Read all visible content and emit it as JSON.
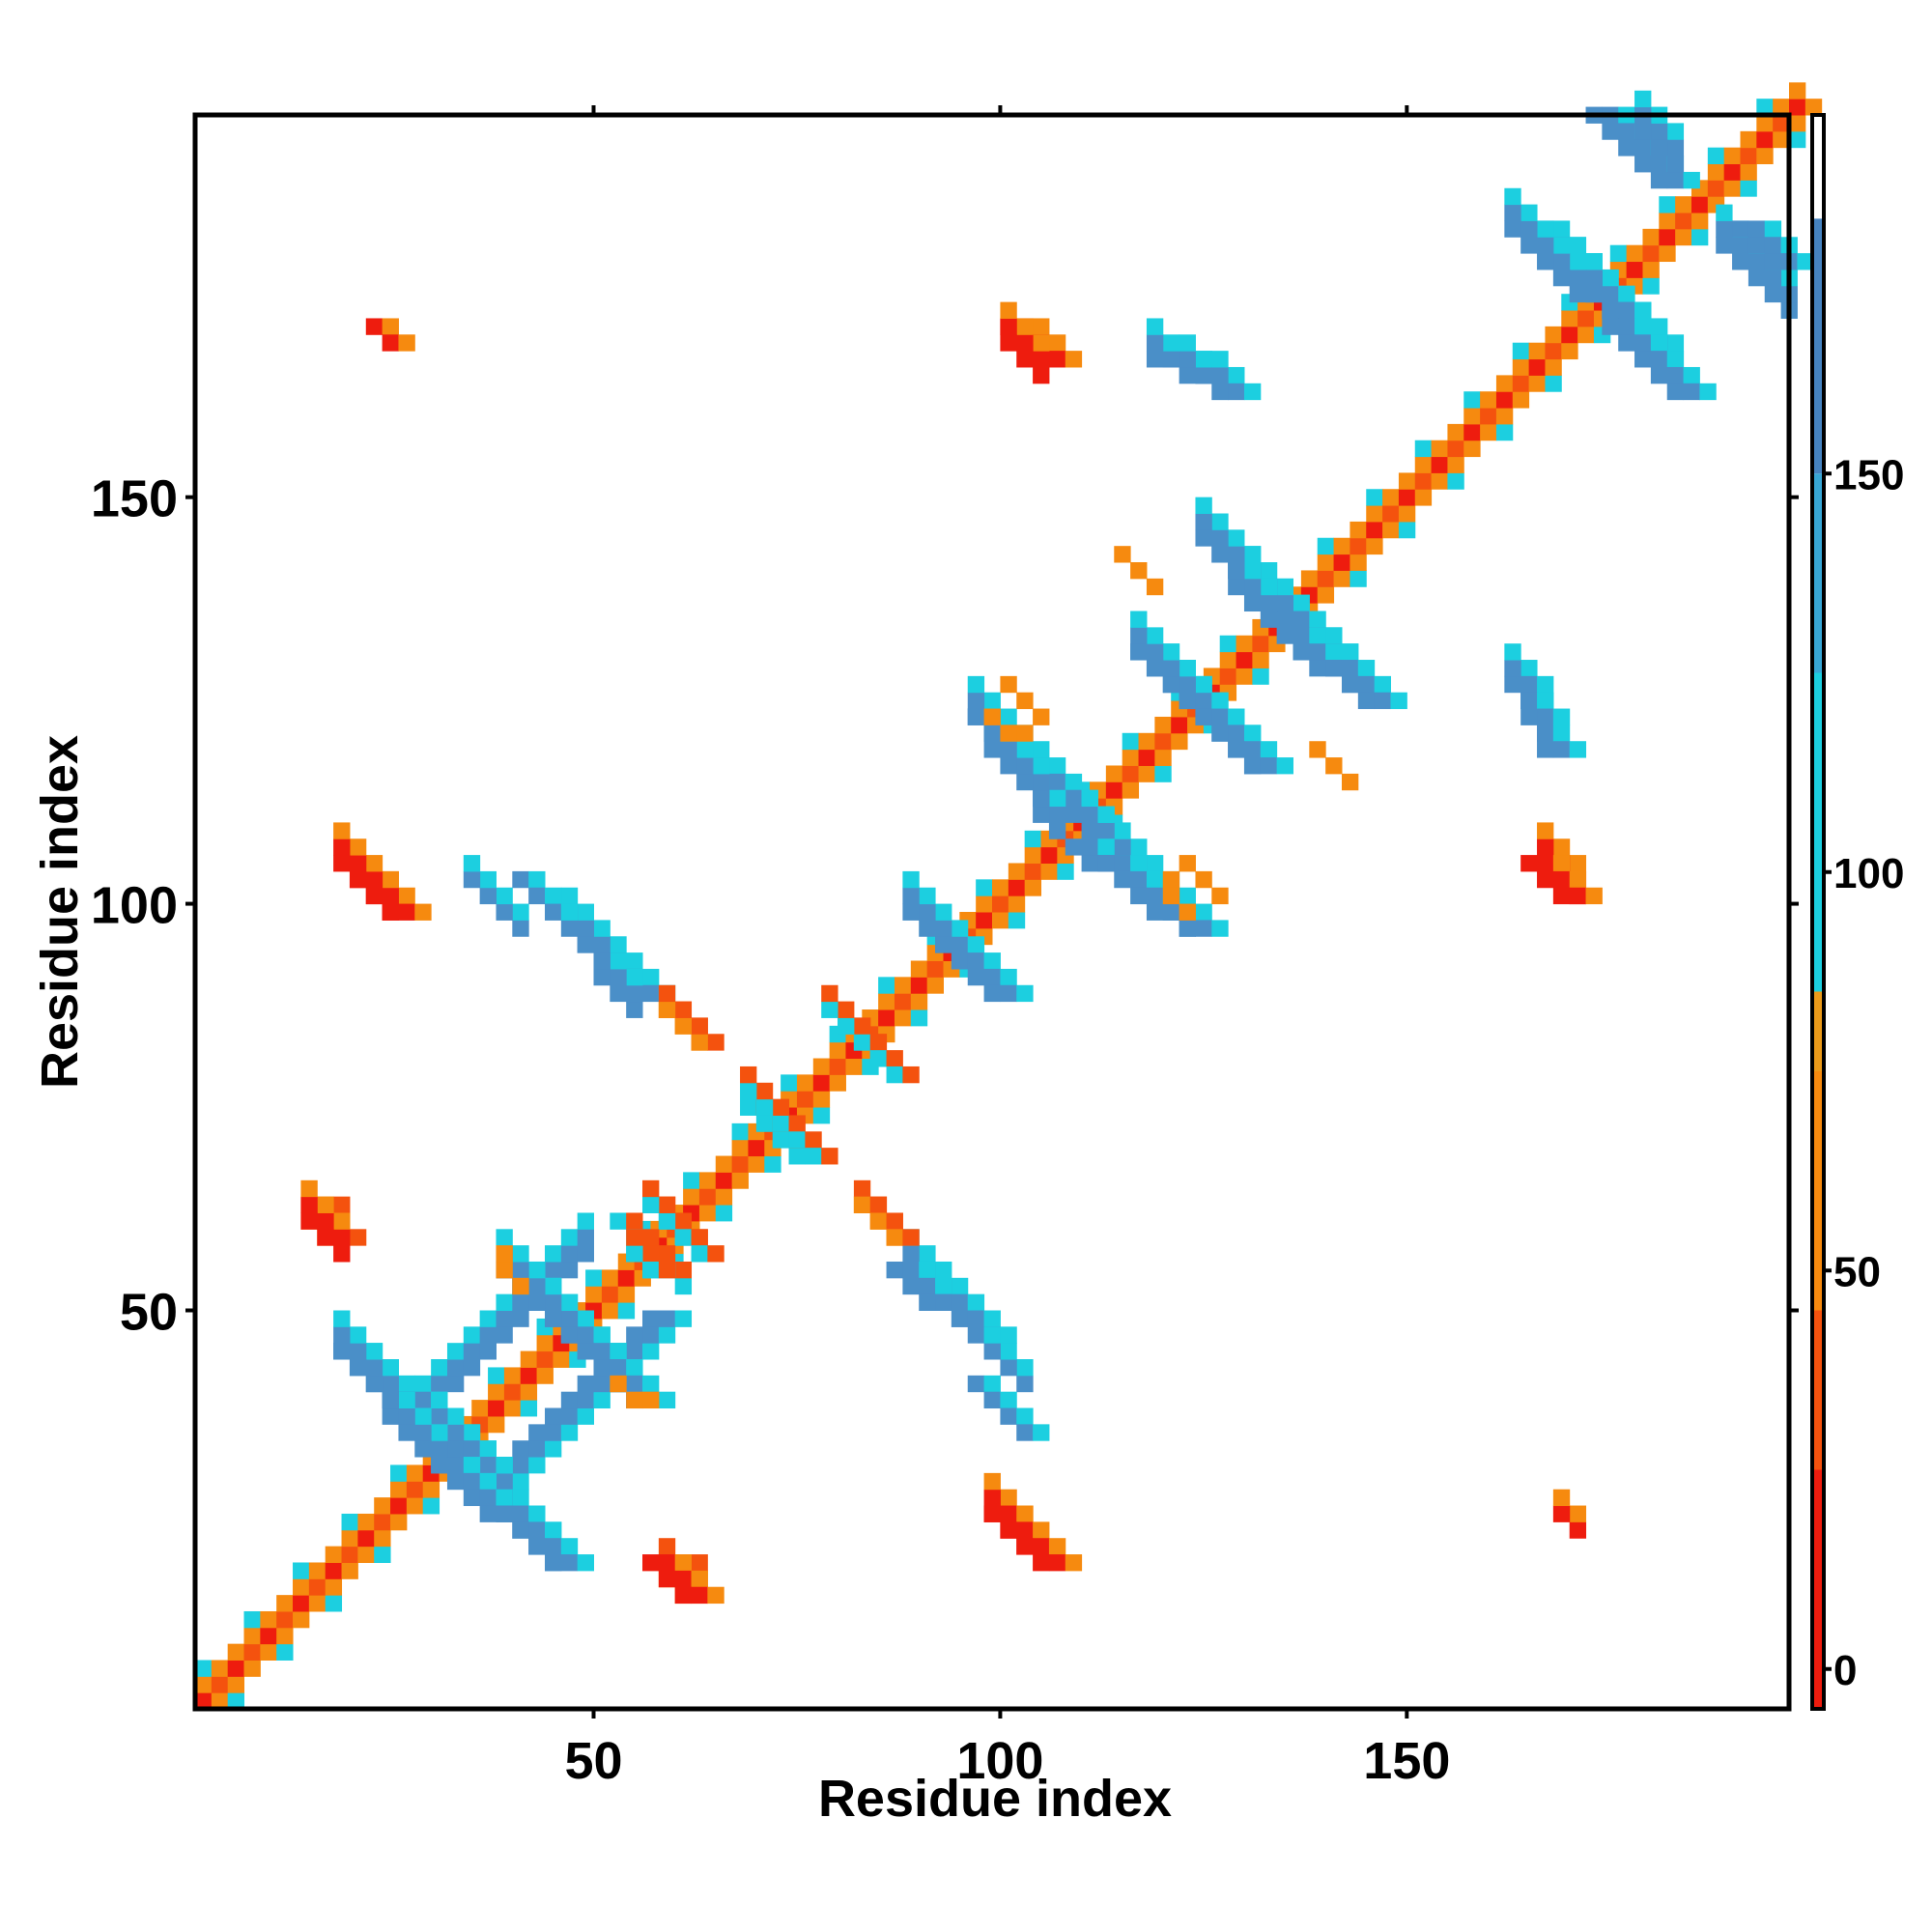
{
  "chart_data": {
    "type": "heatmap",
    "title": "",
    "xlabel": "Residue index",
    "ylabel": "Residue index",
    "xlim": [
      1,
      197
    ],
    "ylim": [
      1,
      197
    ],
    "x_ticks": [
      50,
      100,
      150
    ],
    "y_ticks": [
      50,
      100,
      150
    ],
    "cell_size": 2,
    "colorbar": {
      "ticks": [
        0,
        50,
        100,
        150
      ],
      "range": [
        -5,
        195
      ],
      "bands": [
        {
          "from": -5,
          "to": 25,
          "color": "#ee1c0e"
        },
        {
          "from": 25,
          "to": 45,
          "color": "#f4520e"
        },
        {
          "from": 45,
          "to": 75,
          "color": "#f68a0f"
        },
        {
          "from": 75,
          "to": 85,
          "color": "#ec9b1a"
        },
        {
          "from": 85,
          "to": 125,
          "color": "#1ccfe0"
        },
        {
          "from": 125,
          "to": 150,
          "color": "#38a7d6"
        },
        {
          "from": 150,
          "to": 182,
          "color": "#4683c0"
        },
        {
          "from": 182,
          "to": 195,
          "color": "#ffffff"
        }
      ]
    },
    "colors": {
      "red": "#ee1c0e",
      "orange": "#f68a0f",
      "darkorange": "#f4520e",
      "cyan": "#1ccfe0",
      "blue": "#4a8fc8",
      "midblue": "#38a7d6"
    },
    "diagonal": {
      "from": 1,
      "to": 197
    },
    "contacts": [
      {
        "x": [
          36,
          56
        ],
        "y": [
          28,
          48
        ],
        "color": "blue",
        "w": 3
      },
      {
        "x": [
          18,
          34
        ],
        "y": [
          44,
          30
        ],
        "color": "blue",
        "w": 3
      },
      {
        "x": [
          38,
          54
        ],
        "y": [
          54,
          38
        ],
        "color": "blue",
        "w": 3
      },
      {
        "x": [
          30,
          44
        ],
        "y": [
          30,
          18
        ],
        "color": "blue",
        "w": 3
      },
      {
        "x": [
          92,
          98
        ],
        "y": [
          94,
          88
        ],
        "color": "blue",
        "w": 3
      },
      {
        "x": [
          96,
          108
        ],
        "y": [
          122,
          110
        ],
        "color": "blue",
        "w": 3
      },
      {
        "x": [
          108,
          122
        ],
        "y": [
          106,
          96
        ],
        "color": "blue",
        "w": 3
      },
      {
        "x": [
          115,
          129
        ],
        "y": [
          130,
          116
        ],
        "color": "blue",
        "w": 3
      },
      {
        "x": [
          126,
          138
        ],
        "y": [
          142,
          130
        ],
        "color": "blue",
        "w": 3
      },
      {
        "x": [
          134,
          144
        ],
        "y": [
          132,
          124
        ],
        "color": "blue",
        "w": 3
      },
      {
        "x": [
          163,
          175
        ],
        "y": [
          182,
          170
        ],
        "color": "blue",
        "w": 3
      },
      {
        "x": [
          173,
          182
        ],
        "y": [
          172,
          162
        ],
        "color": "blue",
        "w": 3
      },
      {
        "x": [
          172,
          180
        ],
        "y": [
          196,
          188
        ],
        "color": "blue",
        "w": 3
      },
      {
        "x": [
          190,
          195
        ],
        "y": [
          182,
          177
        ],
        "color": "blue",
        "w": 3
      },
      {
        "x": [
          47,
          53
        ],
        "y": [
          94,
          88
        ],
        "color": "blue",
        "w": 3
      },
      {
        "x": [
          85,
          95
        ],
        "y": [
          54,
          46
        ],
        "color": "blue",
        "w": 3
      },
      {
        "x": [
          39,
          43
        ],
        "y": [
          102,
          98
        ],
        "color": "blue",
        "w": 2
      },
      {
        "x": [
          95,
          101
        ],
        "y": [
          40,
          34
        ],
        "color": "blue",
        "w": 2
      },
      {
        "x": [
          118,
          126
        ],
        "y": [
          166,
          162
        ],
        "color": "blue",
        "w": 3
      },
      {
        "x": [
          163,
          167
        ],
        "y": [
          125,
          117
        ],
        "color": "blue",
        "w": 2
      },
      {
        "x": [
          68,
          76
        ],
        "y": [
          74,
          68
        ],
        "color": "cyan",
        "w": 2
      },
      {
        "x": [
          79,
          85
        ],
        "y": [
          83,
          78
        ],
        "color": "cyan",
        "w": 2
      },
      {
        "x": [
          56,
          62
        ],
        "y": [
          62,
          56
        ],
        "color": "cyan",
        "w": 2
      },
      {
        "x": [
          52,
          56
        ],
        "y": [
          60,
          54
        ],
        "color": "cyan",
        "w": 2
      },
      {
        "x": [
          100,
          104
        ],
        "y": [
          170,
          166
        ],
        "color": "red",
        "w": 3
      },
      {
        "x": [
          20,
          24
        ],
        "y": [
          102,
          98
        ],
        "color": "red",
        "w": 3
      },
      {
        "x": [
          13,
          17
        ],
        "y": [
          62,
          57
        ],
        "color": "orange",
        "w": 3
      },
      {
        "x": [
          56,
          61
        ],
        "y": [
          18,
          14
        ],
        "color": "red",
        "w": 3
      },
      {
        "x": [
          98,
          104
        ],
        "y": [
          23,
          18
        ],
        "color": "red",
        "w": 3
      },
      {
        "x": [
          164,
          168
        ],
        "y": [
          103,
          98
        ],
        "color": "red",
        "w": 3
      },
      {
        "x": [
          58,
          61
        ],
        "y": [
          86,
          82
        ],
        "color": "orange",
        "w": 2
      },
      {
        "x": [
          82,
          86
        ],
        "y": [
          61,
          58
        ],
        "color": "orange",
        "w": 2
      },
      {
        "x": [
          52,
          56
        ],
        "y": [
          39,
          38
        ],
        "color": "orange",
        "w": 1
      },
      {
        "x": [
          21,
          24
        ],
        "y": [
          170,
          168
        ],
        "color": "red",
        "w": 2
      },
      {
        "x": [
          119,
          123
        ],
        "y": [
          102,
          97
        ],
        "color": "orange",
        "w": 1
      },
      {
        "x": [
          100,
          104
        ],
        "y": [
          126,
          122
        ],
        "color": "orange",
        "w": 1
      },
      {
        "x": [
          138,
          143
        ],
        "y": [
          117,
          114
        ],
        "color": "orange",
        "w": 1
      }
    ]
  }
}
